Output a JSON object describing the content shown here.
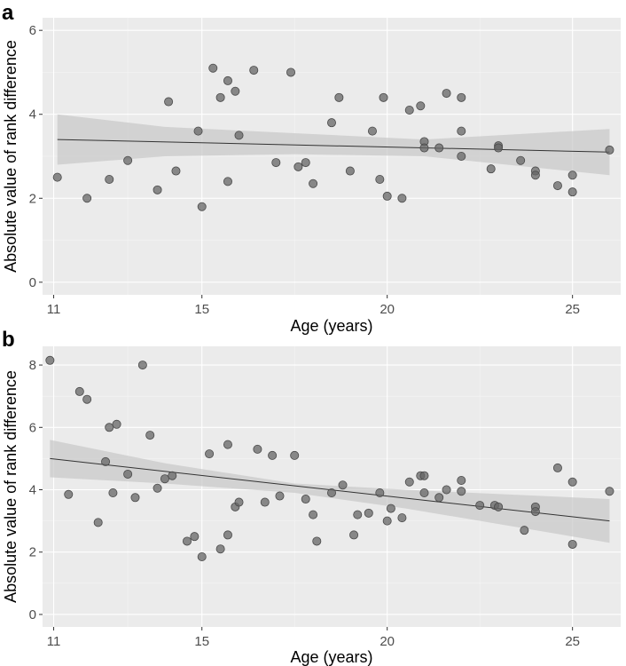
{
  "chart_data": [
    {
      "panel": "a",
      "type": "scatter",
      "xlabel": "Age (years)",
      "ylabel": "Absolute value of rank difference",
      "xlim": [
        10.7,
        26.3
      ],
      "ylim": [
        -0.3,
        6.3
      ],
      "xticks": [
        11,
        15,
        20,
        25
      ],
      "yticks": [
        0,
        2,
        4,
        6
      ],
      "grid": true,
      "fit": {
        "x": [
          11.1,
          26.0
        ],
        "y": [
          3.4,
          3.1
        ]
      },
      "ribbon": {
        "x": [
          11.1,
          14.0,
          17.5,
          21.0,
          26.0
        ],
        "lower": [
          2.8,
          3.0,
          3.05,
          3.0,
          2.55
        ],
        "upper": [
          4.0,
          3.7,
          3.55,
          3.4,
          3.65
        ]
      },
      "points": [
        {
          "x": 11.1,
          "y": 2.5
        },
        {
          "x": 11.9,
          "y": 2.0
        },
        {
          "x": 12.5,
          "y": 2.45
        },
        {
          "x": 13.0,
          "y": 2.9
        },
        {
          "x": 13.8,
          "y": 2.2
        },
        {
          "x": 14.1,
          "y": 4.3
        },
        {
          "x": 14.3,
          "y": 2.65
        },
        {
          "x": 14.9,
          "y": 3.6
        },
        {
          "x": 15.0,
          "y": 1.8
        },
        {
          "x": 15.3,
          "y": 5.1
        },
        {
          "x": 15.5,
          "y": 4.4
        },
        {
          "x": 15.7,
          "y": 4.8
        },
        {
          "x": 15.7,
          "y": 2.4
        },
        {
          "x": 15.9,
          "y": 4.55
        },
        {
          "x": 16.0,
          "y": 3.5
        },
        {
          "x": 16.4,
          "y": 5.05
        },
        {
          "x": 17.0,
          "y": 2.85
        },
        {
          "x": 17.4,
          "y": 5.0
        },
        {
          "x": 17.6,
          "y": 2.75
        },
        {
          "x": 17.8,
          "y": 2.85
        },
        {
          "x": 18.0,
          "y": 2.35
        },
        {
          "x": 18.5,
          "y": 3.8
        },
        {
          "x": 18.7,
          "y": 4.4
        },
        {
          "x": 19.0,
          "y": 2.65
        },
        {
          "x": 19.6,
          "y": 3.6
        },
        {
          "x": 19.8,
          "y": 2.45
        },
        {
          "x": 19.9,
          "y": 4.4
        },
        {
          "x": 20.0,
          "y": 2.05
        },
        {
          "x": 20.4,
          "y": 2.0
        },
        {
          "x": 20.6,
          "y": 4.1
        },
        {
          "x": 20.9,
          "y": 4.2
        },
        {
          "x": 21.0,
          "y": 3.35
        },
        {
          "x": 21.0,
          "y": 3.2
        },
        {
          "x": 21.4,
          "y": 3.2
        },
        {
          "x": 21.6,
          "y": 4.5
        },
        {
          "x": 22.0,
          "y": 4.4
        },
        {
          "x": 22.0,
          "y": 3.6
        },
        {
          "x": 22.0,
          "y": 3.0
        },
        {
          "x": 22.8,
          "y": 2.7
        },
        {
          "x": 23.0,
          "y": 3.25
        },
        {
          "x": 23.0,
          "y": 3.2
        },
        {
          "x": 23.6,
          "y": 2.9
        },
        {
          "x": 24.0,
          "y": 2.65
        },
        {
          "x": 24.0,
          "y": 2.55
        },
        {
          "x": 24.6,
          "y": 2.3
        },
        {
          "x": 25.0,
          "y": 2.55
        },
        {
          "x": 25.0,
          "y": 2.15
        },
        {
          "x": 26.0,
          "y": 3.15
        }
      ]
    },
    {
      "panel": "b",
      "type": "scatter",
      "xlabel": "Age (years)",
      "ylabel": "Absolute value of rank difference",
      "xlim": [
        10.7,
        26.3
      ],
      "ylim": [
        -0.4,
        8.6
      ],
      "xticks": [
        11,
        15,
        20,
        25
      ],
      "yticks": [
        0,
        2,
        4,
        6,
        8
      ],
      "grid": true,
      "fit": {
        "x": [
          10.9,
          26.0
        ],
        "y": [
          5.0,
          3.0
        ]
      },
      "ribbon": {
        "x": [
          10.9,
          14.0,
          17.5,
          20.5,
          26.0
        ],
        "lower": [
          4.4,
          4.2,
          3.9,
          3.4,
          2.3
        ],
        "upper": [
          5.6,
          4.85,
          4.2,
          4.0,
          3.7
        ]
      },
      "points": [
        {
          "x": 10.9,
          "y": 8.15
        },
        {
          "x": 11.4,
          "y": 3.85
        },
        {
          "x": 11.7,
          "y": 7.15
        },
        {
          "x": 11.9,
          "y": 6.9
        },
        {
          "x": 12.2,
          "y": 2.95
        },
        {
          "x": 12.4,
          "y": 4.9
        },
        {
          "x": 12.5,
          "y": 6.0
        },
        {
          "x": 12.6,
          "y": 3.9
        },
        {
          "x": 12.7,
          "y": 6.1
        },
        {
          "x": 13.0,
          "y": 4.5
        },
        {
          "x": 13.2,
          "y": 3.75
        },
        {
          "x": 13.4,
          "y": 8.0
        },
        {
          "x": 13.6,
          "y": 5.75
        },
        {
          "x": 13.8,
          "y": 4.05
        },
        {
          "x": 14.0,
          "y": 4.35
        },
        {
          "x": 14.2,
          "y": 4.45
        },
        {
          "x": 14.6,
          "y": 2.35
        },
        {
          "x": 14.8,
          "y": 2.5
        },
        {
          "x": 15.0,
          "y": 1.85
        },
        {
          "x": 15.2,
          "y": 5.15
        },
        {
          "x": 15.5,
          "y": 2.1
        },
        {
          "x": 15.7,
          "y": 5.45
        },
        {
          "x": 15.7,
          "y": 2.55
        },
        {
          "x": 15.9,
          "y": 3.45
        },
        {
          "x": 16.0,
          "y": 3.6
        },
        {
          "x": 16.5,
          "y": 5.3
        },
        {
          "x": 16.7,
          "y": 3.6
        },
        {
          "x": 16.9,
          "y": 5.1
        },
        {
          "x": 17.1,
          "y": 3.8
        },
        {
          "x": 17.5,
          "y": 5.1
        },
        {
          "x": 17.8,
          "y": 3.7
        },
        {
          "x": 18.0,
          "y": 3.2
        },
        {
          "x": 18.1,
          "y": 2.35
        },
        {
          "x": 18.5,
          "y": 3.9
        },
        {
          "x": 18.8,
          "y": 4.15
        },
        {
          "x": 19.1,
          "y": 2.55
        },
        {
          "x": 19.2,
          "y": 3.2
        },
        {
          "x": 19.5,
          "y": 3.25
        },
        {
          "x": 19.8,
          "y": 3.9
        },
        {
          "x": 20.0,
          "y": 3.0
        },
        {
          "x": 20.1,
          "y": 3.4
        },
        {
          "x": 20.4,
          "y": 3.1
        },
        {
          "x": 20.6,
          "y": 4.25
        },
        {
          "x": 20.9,
          "y": 4.45
        },
        {
          "x": 21.0,
          "y": 4.45
        },
        {
          "x": 21.0,
          "y": 3.9
        },
        {
          "x": 21.4,
          "y": 3.75
        },
        {
          "x": 21.6,
          "y": 4.0
        },
        {
          "x": 22.0,
          "y": 4.3
        },
        {
          "x": 22.0,
          "y": 3.95
        },
        {
          "x": 22.5,
          "y": 3.5
        },
        {
          "x": 22.9,
          "y": 3.5
        },
        {
          "x": 23.0,
          "y": 3.45
        },
        {
          "x": 23.7,
          "y": 2.7
        },
        {
          "x": 24.0,
          "y": 3.45
        },
        {
          "x": 24.0,
          "y": 3.3
        },
        {
          "x": 24.6,
          "y": 4.7
        },
        {
          "x": 25.0,
          "y": 4.25
        },
        {
          "x": 25.0,
          "y": 2.25
        },
        {
          "x": 26.0,
          "y": 3.95
        }
      ]
    }
  ]
}
